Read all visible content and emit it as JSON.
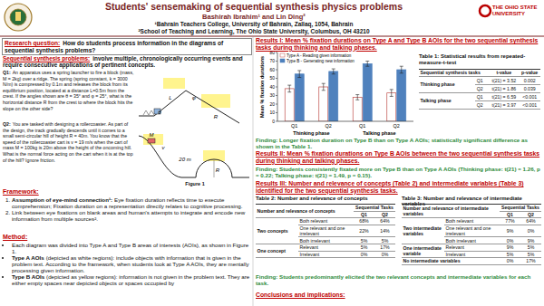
{
  "header": {
    "title": "Students' sensemaking of sequential synthesis physics problems",
    "authors": "Bashirah Ibrahim¹ and Lin Ding²",
    "affiliations": [
      "¹Bahrain Teachers College, University of Bahrain, Zallaq, 1054, Bahrain",
      "²School of Teaching and Learning, The Ohio State University, Columbus, OH 43210"
    ],
    "logo_right": "THE OHIO STATE UNIVERSITY"
  },
  "research_question": {
    "label": "Research question:",
    "text": "How do students process information in the diagrams of sequential synthesis problems?"
  },
  "sequential": {
    "label": "Sequential synthesis problems:",
    "text": "involve multiple, chronologically occurring events and require consecutive applications of pertinent concepts."
  },
  "problems": {
    "q1_label": "Q1:",
    "q1": "An apparatus uses a spring launcher to fire a block (mass, M = 2kg) over a ridge. The spring (spring constant, k = 3000 N/m) is compressed by 0.1m and releases the block from its equilibrium position, located at a distance L=0.5m from the crest. If the angles shown are θ = 35° and φ = 25°, what is the horizontal distance R from the crest to where the block hits the slope on the other side?",
    "q2_label": "Q2:",
    "q2": "You are tasked with designing a rollercoaster. As part of the design, the track gradually descends until it comes to a small semi-circular hill of height R = 40m. You know that the speed of the rollercoaster cart is v = 19 m/s when the cart of mass M = 100kg is 20m above the height of the oncoming hill. What is the normal force acting on the cart when it is at the top of the hill? Ignore friction."
  },
  "figure": {
    "caption": "Figure 1",
    "q1_labels": [
      "L",
      "θ",
      "φ",
      "R"
    ],
    "q2_labels": [
      "M",
      "v",
      "20 m",
      "R"
    ]
  },
  "framework": {
    "heading": "Framework:",
    "items": [
      {
        "lead": "Assumption of eye-mind connection¹:",
        "text": "Eye fixation duration reflects time to execute comprehension; Fixation duration on a representation directly relates to cognitive processing."
      },
      {
        "text": "Link between eye fixations on blank areas and human's attempts to integrate and encode new information from multiple sources²."
      }
    ]
  },
  "method": {
    "heading": "Method:",
    "items": [
      {
        "text": "Each diagram was divided into Type A and Type B areas of interests (AOIs), as shown in Figure 1."
      },
      {
        "lead": "Type A AOIs",
        "text": "(depicted as white regions): include objects with information that is given in the problem text. According to the framework, when students look at Type A AOIs, they are mentally processing given information."
      },
      {
        "lead": "Type B AOIs",
        "text": "(depicted as yellow regions): information is not given in the problem text. They are either empty spaces near depicted objects or spaces occupied by"
      }
    ]
  },
  "results_1": {
    "heading": "Results I: Mean % fixation durations on Type A and Type B AOIs for the two sequential synthesis tasks during thinking and talking phases.",
    "finding": "Finding: Longer fixation duration on Type B than on Type A AOIs; statistically significant difference as shown in the Table 1."
  },
  "chart_data": {
    "type": "bar",
    "y_label": "Mean % fixation durations",
    "categories": [
      "Q1",
      "Q2",
      "Q1",
      "Q2"
    ],
    "group_labels": [
      "Thinking phase",
      "Talking phase"
    ],
    "series": [
      {
        "name": "Type A - Reading given information",
        "color": "#ffffff",
        "values": [
          38,
          40,
          28,
          33
        ],
        "errors": [
          4,
          4,
          3,
          4
        ]
      },
      {
        "name": "Type B - Generating new information",
        "color": "#4f81bd",
        "values": [
          55,
          58,
          67,
          60
        ],
        "errors": [
          4,
          3,
          3,
          4
        ]
      }
    ],
    "ylim": [
      0,
      80
    ],
    "yticks": [
      0,
      10,
      20,
      30,
      40,
      50,
      60,
      70,
      80
    ],
    "legend": "top-left",
    "grid": false
  },
  "table1": {
    "title": "Table 1: Statistical results from repeated-measure-t-test",
    "header": [
      "Sequential synthesis tasks",
      "t-value",
      "p-value"
    ],
    "groups": [
      {
        "label": "Thinking phase",
        "rows": [
          [
            "Q1",
            "t(21) = 3.52",
            "0.002"
          ],
          [
            "Q2",
            "t(21) = 1.86",
            "0.039"
          ]
        ]
      },
      {
        "label": "Talking phase",
        "rows": [
          [
            "Q1",
            "t(21) = 6.59",
            "<0.001"
          ],
          [
            "Q2",
            "t(21) = 3.97",
            "<0.001"
          ]
        ]
      }
    ]
  },
  "results_2": {
    "heading": "Results II: Mean % fixation durations on Type B AOIs between the two sequential synthesis tasks during thinking and talking phases.",
    "finding": "Finding: Students consistently fixated more on Type B than on Type A AOIs (Thinking phase: t(21) = 1.26, p = 0.22; Talking phase: t(21) = 1.49, p = 0.15)."
  },
  "results_3": {
    "heading": "Results III: Number and relevance of concepts (Table 2) and intermediate variables (Table 3) identified for the two sequential synthesis tasks.",
    "finding": "Finding: Students predominantly elicited the two relevant concepts and intermediate variables for each task."
  },
  "table2": {
    "title": "Table 2: Number and relevance of concepts",
    "col_header": "Number and relevance of concepts",
    "span_header": "Sequential Tasks",
    "cols": [
      "Q1",
      "Q2"
    ],
    "groups": [
      {
        "label": "Two concepts",
        "rows": [
          [
            "Both relevant",
            "68%",
            "64%"
          ],
          [
            "One relevant and one irrelevant",
            "22%",
            "14%"
          ],
          [
            "Both irrelevant",
            "5%",
            "5%"
          ]
        ]
      },
      {
        "label": "One concept",
        "rows": [
          [
            "Relevant",
            "5%",
            "17%"
          ],
          [
            "Irrelevant",
            "0%",
            "0%"
          ]
        ]
      }
    ]
  },
  "table3": {
    "title": "Table 3: Number and relevance of intermediate variables",
    "col_header": "Number and relevance of intermediate variables",
    "span_header": "Sequential Tasks",
    "cols": [
      "Q1",
      "Q2"
    ],
    "groups": [
      {
        "label": "Two intermediate variables",
        "rows": [
          [
            "Both relevant",
            "77%",
            "64%"
          ],
          [
            "One relevant and one irrelevant",
            "9%",
            "0%"
          ],
          [
            "Both irrelevant",
            "0%",
            "9%"
          ]
        ]
      },
      {
        "label": "One intermediate variable",
        "rows": [
          [
            "Relevant",
            "9%",
            "5%"
          ],
          [
            "Irrelevant",
            "5%",
            "5%"
          ]
        ]
      },
      {
        "label": "No intermediate variables",
        "rows": [
          [
            "0%",
            "17%"
          ]
        ]
      }
    ]
  },
  "conclusions": {
    "heading": "Conclusions and implications:"
  }
}
